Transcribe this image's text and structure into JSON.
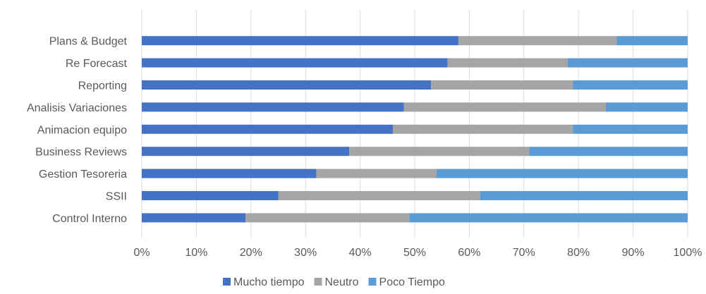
{
  "chart_data": {
    "type": "bar",
    "orientation": "horizontal",
    "stacked": "percent",
    "categories": [
      "Plans & Budget",
      "Re Forecast",
      "Reporting",
      "Analisis Variaciones",
      "Animacion equipo",
      "Business Reviews",
      "Gestion Tesoreria",
      "SSII",
      "Control Interno"
    ],
    "series": [
      {
        "name": "Mucho tiempo",
        "color": "#4472c4",
        "values": [
          58,
          56,
          53,
          48,
          46,
          38,
          32,
          25,
          19
        ]
      },
      {
        "name": "Neutro",
        "color": "#a5a5a5",
        "values": [
          29,
          22,
          26,
          37,
          33,
          33,
          22,
          37,
          30
        ]
      },
      {
        "name": "Poco Tiempo",
        "color": "#5b9bd5",
        "values": [
          13,
          22,
          21,
          15,
          21,
          29,
          46,
          38,
          51
        ]
      }
    ],
    "xlim": [
      0,
      100
    ],
    "x_ticks": [
      "0%",
      "10%",
      "20%",
      "30%",
      "40%",
      "50%",
      "60%",
      "70%",
      "80%",
      "90%",
      "100%"
    ],
    "grid": "vertical",
    "legend_position": "bottom"
  }
}
